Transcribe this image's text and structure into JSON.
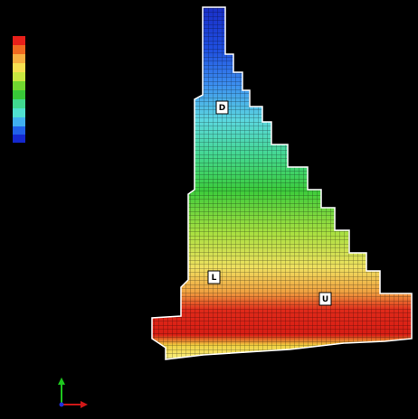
{
  "markers": [
    "D",
    "L",
    "U"
  ]
}
